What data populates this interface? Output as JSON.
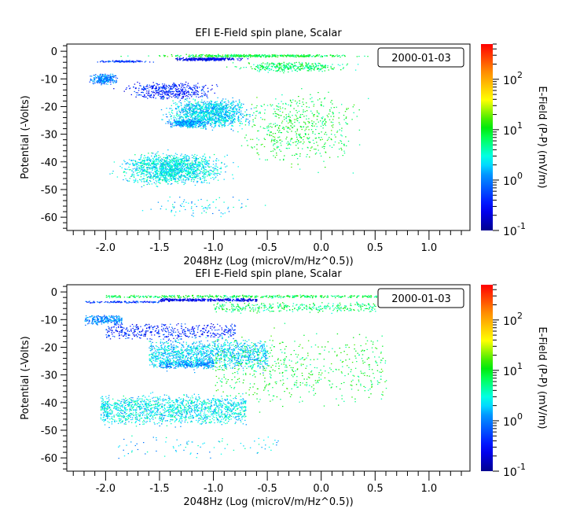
{
  "chart_data": [
    {
      "type": "scatter",
      "title": "EFI  E-Field spin plane, Scalar",
      "xlabel": "2048Hz (Log (microV/m/Hz^0.5))",
      "ylabel": "Potential (-Volts)",
      "xlim": [
        -2.36,
        1.38
      ],
      "ylim": [
        -64.8,
        2.6
      ],
      "xticks": [
        "-2.0",
        "-1.5",
        "-1.0",
        "-0.5",
        "0.0",
        "0.5",
        "1.0"
      ],
      "yticks": [
        "0",
        "-10",
        "-20",
        "-30",
        "-40",
        "-50",
        "-60"
      ],
      "legend": "2000-01-03",
      "legend_placement": "top-right",
      "colorbar": {
        "label": "E-Field (P-P) (mV/m)",
        "scale": "log",
        "range": [
          0.1,
          500
        ],
        "ticks": [
          "10",
          "10",
          "10",
          "10"
        ],
        "tick_exponents": [
          "-1",
          "0",
          "1",
          "2"
        ],
        "colormap": [
          "#00008f",
          "#0000ff",
          "#00ffff",
          "#00ff00",
          "#ffff00",
          "#ff8000",
          "#ff0000"
        ]
      },
      "point_regions": [
        {
          "x": [
            -2.0,
            0.8
          ],
          "y": [
            -0.8,
            -2.2
          ],
          "log_efield": 0.9,
          "count": 450
        },
        {
          "x": [
            -1.5,
            -0.6
          ],
          "y": [
            -2.0,
            -3.5
          ],
          "log_efield": -0.6,
          "count": 350
        },
        {
          "x": [
            -2.2,
            -1.5
          ],
          "y": [
            -3.0,
            -4.0
          ],
          "log_efield": -0.3,
          "count": 120
        },
        {
          "x": [
            -1.0,
            0.5
          ],
          "y": [
            -3.0,
            -8.0
          ],
          "log_efield": 0.8,
          "count": 350
        },
        {
          "x": [
            -2.2,
            -1.85
          ],
          "y": [
            -7.5,
            -12.5
          ],
          "log_efield": 0.0,
          "count": 250
        },
        {
          "x": [
            -2.0,
            -0.8
          ],
          "y": [
            -10.0,
            -18.5
          ],
          "log_efield": -0.4,
          "count": 450
        },
        {
          "x": [
            -1.6,
            -0.5
          ],
          "y": [
            -15.0,
            -30.0
          ],
          "log_efield": 0.3,
          "count": 1300
        },
        {
          "x": [
            -1.0,
            0.6
          ],
          "y": [
            -10.0,
            -46.0
          ],
          "log_efield": 0.9,
          "count": 550
        },
        {
          "x": [
            -1.5,
            -1.0
          ],
          "y": [
            -24.0,
            -28.0
          ],
          "log_efield": 0.1,
          "count": 300
        },
        {
          "x": [
            -2.05,
            -0.7
          ],
          "y": [
            -35.0,
            -50.0
          ],
          "log_efield": 0.4,
          "count": 1500
        },
        {
          "x": [
            -1.9,
            -0.4
          ],
          "y": [
            -50.0,
            -62.0
          ],
          "log_efield": 0.3,
          "count": 80
        }
      ]
    },
    {
      "type": "scatter",
      "title": "EFI  E-Field spin plane, Scalar",
      "xlabel": "2048Hz (Log (microV/m/Hz^0.5))",
      "ylabel": "Potential (-Volts)",
      "xlim": [
        -2.36,
        1.38
      ],
      "ylim": [
        -64.8,
        2.6
      ],
      "xticks": [
        "-2.0",
        "-1.5",
        "-1.0",
        "-0.5",
        "0.0",
        "0.5",
        "1.0"
      ],
      "yticks": [
        "0",
        "-10",
        "-20",
        "-30",
        "-40",
        "-50",
        "-60"
      ],
      "legend": "2000-01-03",
      "legend_placement": "top-right",
      "colorbar": {
        "label": "E-Field (P-P) (mV/m)",
        "scale": "log",
        "range": [
          0.1,
          500
        ],
        "ticks": [
          "10",
          "10",
          "10",
          "10"
        ],
        "tick_exponents": [
          "-1",
          "0",
          "1",
          "2"
        ],
        "colormap": [
          "#00008f",
          "#0000ff",
          "#00ffff",
          "#00ff00",
          "#ffff00",
          "#ff8000",
          "#ff0000"
        ]
      },
      "point_regions": [
        {
          "x": [
            -2.0,
            0.8
          ],
          "y": [
            -0.8,
            -2.2
          ],
          "log_efield": 0.9,
          "count": 450
        },
        {
          "x": [
            -1.5,
            -0.6
          ],
          "y": [
            -2.0,
            -3.5
          ],
          "log_efield": -0.6,
          "count": 350
        },
        {
          "x": [
            -2.2,
            -1.5
          ],
          "y": [
            -3.0,
            -4.0
          ],
          "log_efield": -0.3,
          "count": 120
        },
        {
          "x": [
            -1.0,
            0.5
          ],
          "y": [
            -3.0,
            -8.0
          ],
          "log_efield": 0.8,
          "count": 350
        },
        {
          "x": [
            -2.2,
            -1.85
          ],
          "y": [
            -7.5,
            -12.5
          ],
          "log_efield": 0.0,
          "count": 250
        },
        {
          "x": [
            -2.0,
            -0.8
          ],
          "y": [
            -10.0,
            -18.5
          ],
          "log_efield": -0.4,
          "count": 450
        },
        {
          "x": [
            -1.6,
            -0.5
          ],
          "y": [
            -15.0,
            -30.0
          ],
          "log_efield": 0.3,
          "count": 1300
        },
        {
          "x": [
            -1.0,
            0.6
          ],
          "y": [
            -10.0,
            -46.0
          ],
          "log_efield": 0.9,
          "count": 550
        },
        {
          "x": [
            -1.5,
            -1.0
          ],
          "y": [
            -24.0,
            -28.0
          ],
          "log_efield": 0.1,
          "count": 300
        },
        {
          "x": [
            -2.05,
            -0.7
          ],
          "y": [
            -35.0,
            -50.0
          ],
          "log_efield": 0.4,
          "count": 1500
        },
        {
          "x": [
            -1.9,
            -0.4
          ],
          "y": [
            -50.0,
            -62.0
          ],
          "log_efield": 0.3,
          "count": 80
        }
      ]
    }
  ]
}
